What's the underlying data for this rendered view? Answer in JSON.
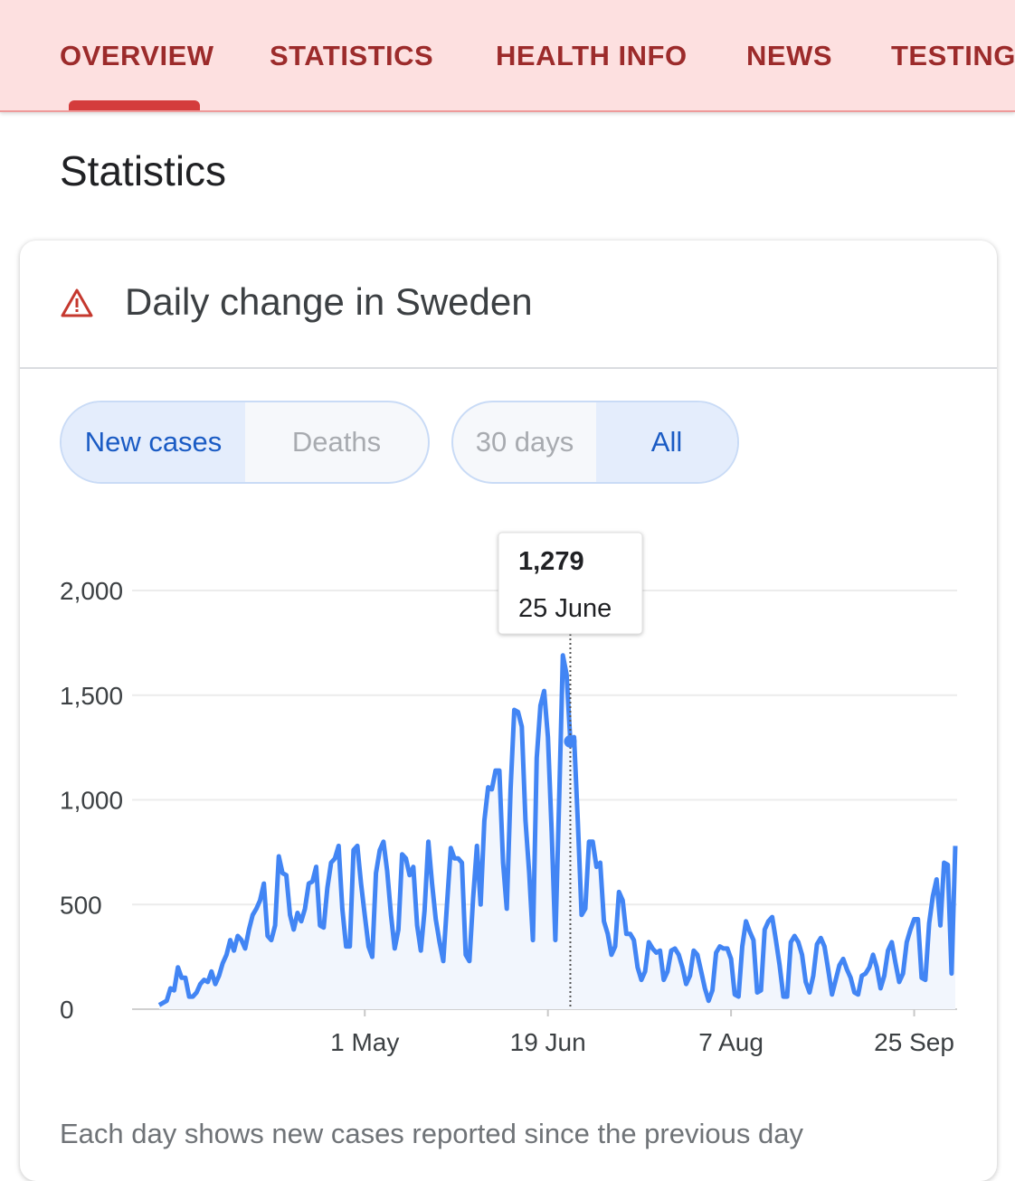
{
  "nav": {
    "tabs": [
      "OVERVIEW",
      "STATISTICS",
      "HEALTH INFO",
      "NEWS",
      "TESTING"
    ]
  },
  "heading": "Statistics",
  "card": {
    "title": "Daily change in Sweden",
    "toggle_metric": [
      "New cases",
      "Deaths"
    ],
    "toggle_range": [
      "30 days",
      "All"
    ],
    "footnote": "Each day shows new cases reported since the previous day"
  },
  "chart_data": {
    "type": "line",
    "x": [
      "7 Mar",
      "8 Mar",
      "9 Mar",
      "10 Mar",
      "11 Mar",
      "12 Mar",
      "13 Mar",
      "14 Mar",
      "15 Mar",
      "16 Mar",
      "17 Mar",
      "18 Mar",
      "19 Mar",
      "20 Mar",
      "21 Mar",
      "22 Mar",
      "23 Mar",
      "24 Mar",
      "25 Mar",
      "26 Mar",
      "27 Mar",
      "28 Mar",
      "29 Mar",
      "30 Mar",
      "31 Mar",
      "1 Apr",
      "2 Apr",
      "3 Apr",
      "4 Apr",
      "5 Apr",
      "6 Apr",
      "7 Apr",
      "8 Apr",
      "9 Apr",
      "10 Apr",
      "11 Apr",
      "12 Apr",
      "13 Apr",
      "14 Apr",
      "15 Apr",
      "16 Apr",
      "17 Apr",
      "18 Apr",
      "19 Apr",
      "20 Apr",
      "21 Apr",
      "22 Apr",
      "23 Apr",
      "24 Apr",
      "25 Apr",
      "26 Apr",
      "27 Apr",
      "28 Apr",
      "29 Apr",
      "30 Apr",
      "1 May",
      "2 May",
      "3 May",
      "4 May",
      "5 May",
      "6 May",
      "7 May",
      "8 May",
      "9 May",
      "10 May",
      "11 May",
      "12 May",
      "13 May",
      "14 May",
      "15 May",
      "16 May",
      "17 May",
      "18 May",
      "19 May",
      "20 May",
      "21 May",
      "22 May",
      "23 May",
      "24 May",
      "25 May",
      "26 May",
      "27 May",
      "28 May",
      "29 May",
      "30 May",
      "31 May",
      "1 Jun",
      "2 Jun",
      "3 Jun",
      "4 Jun",
      "5 Jun",
      "6 Jun",
      "7 Jun",
      "8 Jun",
      "9 Jun",
      "10 Jun",
      "11 Jun",
      "12 Jun",
      "13 Jun",
      "14 Jun",
      "15 Jun",
      "16 Jun",
      "17 Jun",
      "18 Jun",
      "19 Jun",
      "20 Jun",
      "21 Jun",
      "22 Jun",
      "23 Jun",
      "24 Jun",
      "25 Jun",
      "26 Jun",
      "27 Jun",
      "28 Jun",
      "29 Jun",
      "30 Jun",
      "1 Jul",
      "2 Jul",
      "3 Jul",
      "4 Jul",
      "5 Jul",
      "6 Jul",
      "7 Jul",
      "8 Jul",
      "9 Jul",
      "10 Jul",
      "11 Jul",
      "12 Jul",
      "13 Jul",
      "14 Jul",
      "15 Jul",
      "16 Jul",
      "17 Jul",
      "18 Jul",
      "19 Jul",
      "20 Jul",
      "21 Jul",
      "22 Jul",
      "23 Jul",
      "24 Jul",
      "25 Jul",
      "26 Jul",
      "27 Jul",
      "28 Jul",
      "29 Jul",
      "30 Jul",
      "31 Jul",
      "1 Aug",
      "2 Aug",
      "3 Aug",
      "4 Aug",
      "5 Aug",
      "6 Aug",
      "7 Aug",
      "8 Aug",
      "9 Aug",
      "10 Aug",
      "11 Aug",
      "12 Aug",
      "13 Aug",
      "14 Aug",
      "15 Aug",
      "16 Aug",
      "17 Aug",
      "18 Aug",
      "19 Aug",
      "20 Aug",
      "21 Aug",
      "22 Aug",
      "23 Aug",
      "24 Aug",
      "25 Aug",
      "26 Aug",
      "27 Aug",
      "28 Aug",
      "29 Aug",
      "30 Aug",
      "31 Aug",
      "1 Sep",
      "2 Sep",
      "3 Sep",
      "4 Sep",
      "5 Sep",
      "6 Sep",
      "7 Sep",
      "8 Sep",
      "9 Sep",
      "10 Sep",
      "11 Sep",
      "12 Sep",
      "13 Sep",
      "14 Sep",
      "15 Sep",
      "16 Sep",
      "17 Sep",
      "18 Sep",
      "19 Sep",
      "20 Sep",
      "21 Sep",
      "22 Sep",
      "23 Sep",
      "24 Sep",
      "25 Sep",
      "26 Sep",
      "27 Sep",
      "28 Sep",
      "29 Sep",
      "30 Sep",
      "1 Oct",
      "2 Oct",
      "3 Oct",
      "4 Oct",
      "5 Oct",
      "6 Oct"
    ],
    "series": [
      {
        "color": "#4285f4",
        "values": [
          20,
          30,
          40,
          100,
          90,
          200,
          150,
          150,
          60,
          60,
          80,
          120,
          140,
          130,
          180,
          120,
          160,
          220,
          260,
          330,
          280,
          350,
          330,
          290,
          380,
          450,
          480,
          520,
          600,
          350,
          330,
          400,
          730,
          650,
          640,
          450,
          380,
          460,
          420,
          480,
          600,
          610,
          680,
          400,
          390,
          580,
          700,
          720,
          780,
          480,
          300,
          300,
          760,
          780,
          600,
          450,
          300,
          250,
          650,
          760,
          800,
          660,
          450,
          290,
          380,
          740,
          720,
          640,
          680,
          400,
          280,
          470,
          800,
          600,
          430,
          320,
          230,
          500,
          770,
          720,
          720,
          700,
          260,
          230,
          530,
          780,
          500,
          900,
          1060,
          1050,
          1140,
          1140,
          700,
          480,
          1050,
          1430,
          1420,
          1350,
          900,
          650,
          330,
          1200,
          1450,
          1520,
          1300,
          850,
          330,
          1000,
          1690,
          1600,
          1279,
          1300,
          900,
          450,
          480,
          800,
          800,
          680,
          700,
          420,
          360,
          260,
          300,
          560,
          520,
          360,
          360,
          330,
          200,
          140,
          180,
          320,
          290,
          270,
          280,
          140,
          180,
          280,
          290,
          260,
          200,
          120,
          160,
          280,
          260,
          180,
          100,
          40,
          90,
          270,
          300,
          290,
          290,
          240,
          70,
          60,
          300,
          420,
          370,
          330,
          80,
          90,
          380,
          420,
          440,
          330,
          210,
          60,
          60,
          320,
          350,
          320,
          260,
          130,
          80,
          160,
          310,
          340,
          300,
          190,
          70,
          140,
          210,
          240,
          190,
          150,
          80,
          70,
          160,
          170,
          200,
          260,
          200,
          100,
          160,
          280,
          320,
          220,
          130,
          170,
          320,
          380,
          430,
          430,
          150,
          140,
          410,
          540,
          620,
          400,
          700,
          690,
          170,
          780
        ]
      }
    ],
    "ylim": [
      0,
      2000
    ],
    "yticks": [
      0,
      500,
      {
        "value": 1000,
        "label": "1,000"
      },
      {
        "value": 1500,
        "label": "1,500"
      },
      {
        "value": 2000,
        "label": "2,000"
      }
    ],
    "xticks": [
      "1 May",
      "19 Jun",
      "7 Aug",
      "25 Sep"
    ],
    "grid": true,
    "tooltip": {
      "value": 1279,
      "value_label": "1,279",
      "date": "25 June"
    }
  }
}
